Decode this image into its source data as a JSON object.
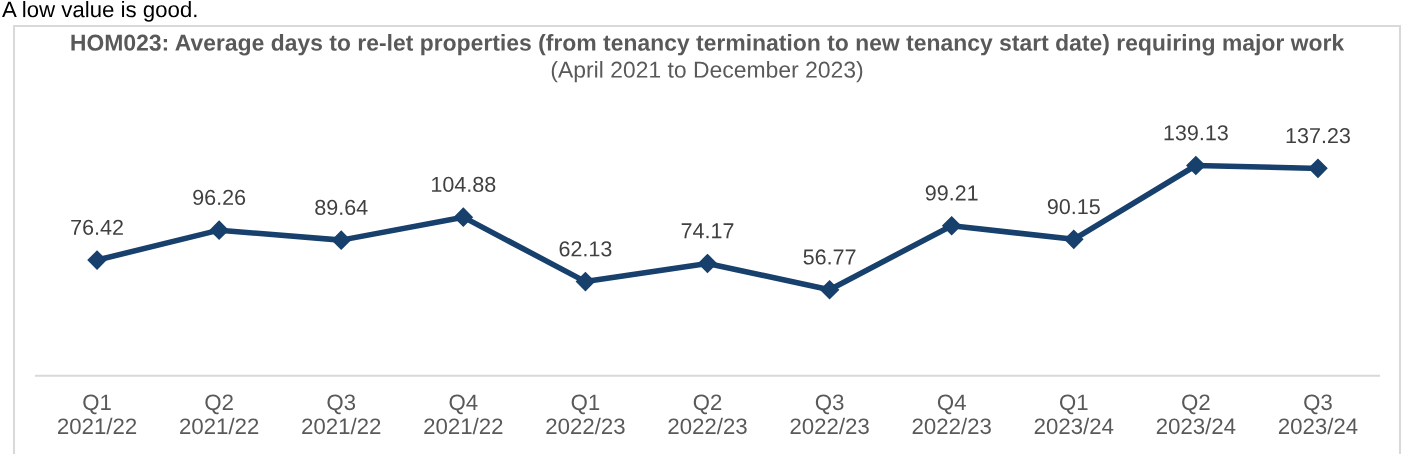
{
  "chart_data": {
    "type": "line",
    "title": "HOM023: Average days to re-let properties (from tenancy termination to new tenancy start date) requiring major work",
    "subtitle": "(April 2021 to December 2023)",
    "annotations": [
      "A low value is good."
    ],
    "categories": [
      "Q1\n2021/22",
      "Q2\n2021/22",
      "Q3\n2021/22",
      "Q4\n2021/22",
      "Q1\n2022/23",
      "Q2\n2022/23",
      "Q3\n2022/23",
      "Q4\n2022/23",
      "Q1\n2023/24",
      "Q2\n2023/24",
      "Q3\n2023/24"
    ],
    "values": [
      76.42,
      96.26,
      89.64,
      104.88,
      62.13,
      74.17,
      56.77,
      99.21,
      90.15,
      139.13,
      137.23
    ],
    "color": "#17406d",
    "marker": "diamond",
    "line_style": "solid",
    "data_labels": true,
    "tick_labels": "x"
  }
}
